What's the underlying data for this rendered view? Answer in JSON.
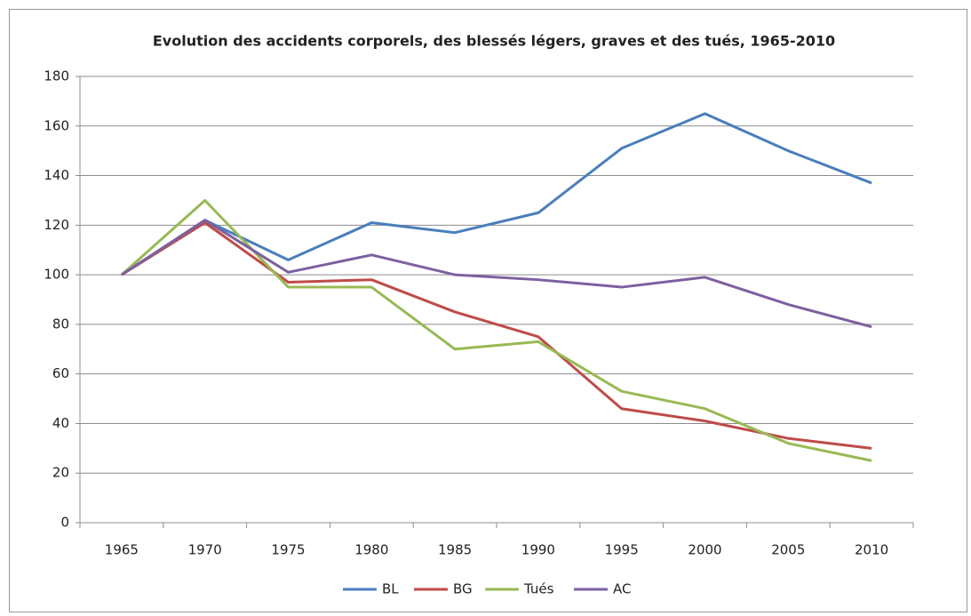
{
  "chart_data": {
    "type": "line",
    "title": "Evolution des accidents corporels, des blessés légers, graves et des tués, 1965-2010",
    "categories": [
      "1965",
      "1970",
      "1975",
      "1980",
      "1985",
      "1990",
      "1995",
      "2000",
      "2005",
      "2010"
    ],
    "series": [
      {
        "name": "BL",
        "color": "#4a7ebb",
        "values": [
          100,
          122,
          106,
          121,
          117,
          125,
          151,
          165,
          150,
          137
        ]
      },
      {
        "name": "BG",
        "color": "#be4b48",
        "values": [
          100,
          121,
          97,
          98,
          85,
          75,
          46,
          41,
          34,
          30
        ]
      },
      {
        "name": "Tués",
        "color": "#98b954",
        "values": [
          100,
          130,
          95,
          95,
          70,
          73,
          53,
          46,
          32,
          25
        ]
      },
      {
        "name": "AC",
        "color": "#7d60a0",
        "values": [
          100,
          122,
          101,
          108,
          100,
          98,
          95,
          99,
          88,
          79
        ]
      }
    ],
    "ylim": [
      0,
      180
    ],
    "yticks": [
      0,
      20,
      40,
      60,
      80,
      100,
      120,
      140,
      160,
      180
    ],
    "grid": true,
    "legend": "bottom"
  }
}
